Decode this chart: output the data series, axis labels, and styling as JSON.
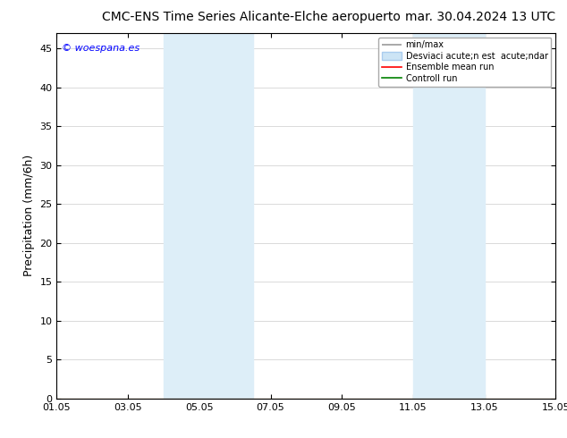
{
  "title_left": "CMC-ENS Time Series Alicante-Elche aeropuerto",
  "title_right": "mar. 30.04.2024 13 UTC",
  "ylabel": "Precipitation (mm/6h)",
  "watermark": "© woespana.es",
  "x_min": 0,
  "x_max": 14,
  "y_min": 0,
  "y_max": 47,
  "yticks": [
    0,
    5,
    10,
    15,
    20,
    25,
    30,
    35,
    40,
    45
  ],
  "xtick_positions": [
    0,
    2,
    4,
    6,
    8,
    10,
    12,
    14
  ],
  "xtick_labels": [
    "01.05",
    "03.05",
    "05.05",
    "07.05",
    "09.05",
    "11.05",
    "13.05",
    "15.05"
  ],
  "shaded_regions": [
    {
      "x_start": 3.0,
      "x_end": 4.0,
      "color": "#ddeef8"
    },
    {
      "x_start": 4.0,
      "x_end": 5.5,
      "color": "#ddeef8"
    },
    {
      "x_start": 10.0,
      "x_end": 11.0,
      "color": "#ddeef8"
    },
    {
      "x_start": 11.0,
      "x_end": 12.0,
      "color": "#ddeef8"
    }
  ],
  "bg_color": "#ffffff",
  "plot_bg_color": "#ffffff",
  "grid_color": "#cccccc",
  "title_fontsize": 10,
  "tick_fontsize": 8,
  "ylabel_fontsize": 9,
  "legend_label_minmax": "min/max",
  "legend_label_std": "Desviaci acute;n est  acute;ndar",
  "legend_label_ensemble": "Ensemble mean run",
  "legend_label_control": "Controll run"
}
